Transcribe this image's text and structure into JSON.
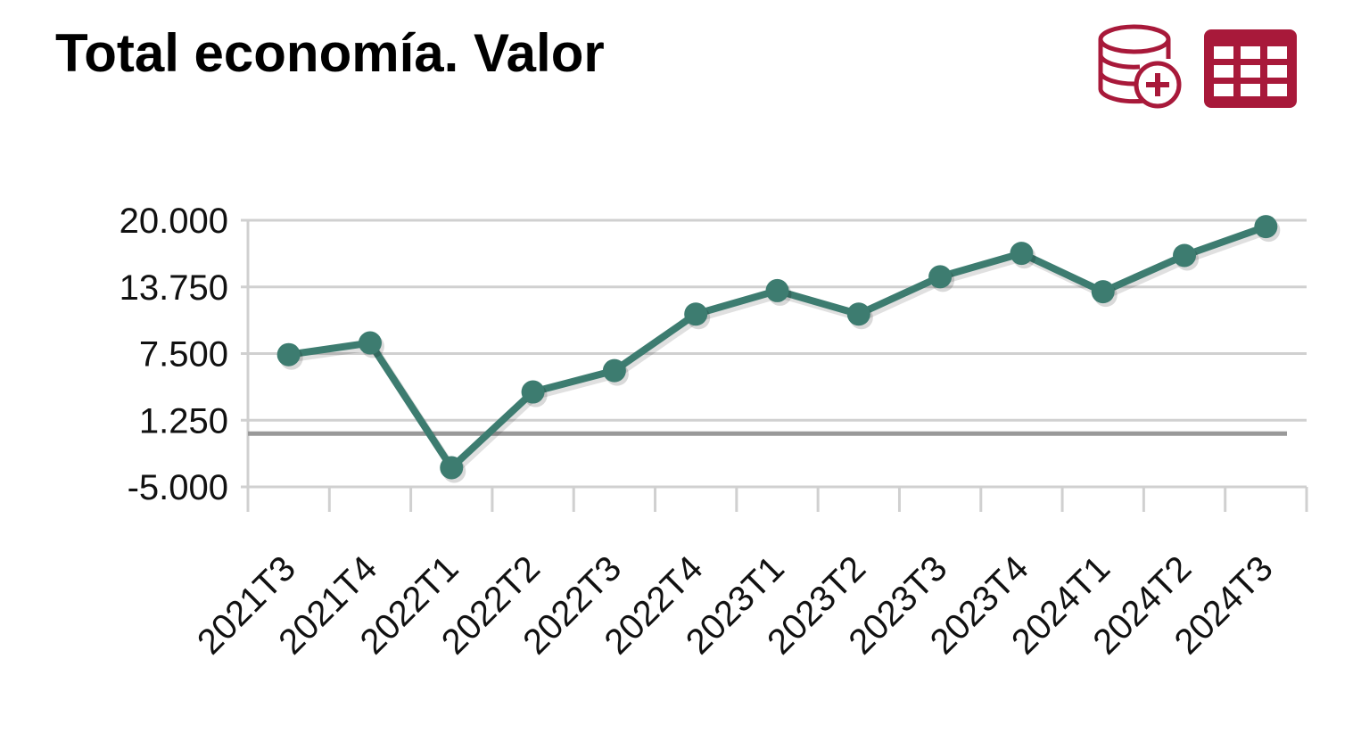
{
  "chart_data": {
    "type": "line",
    "title": "Total economía. Valor",
    "categories": [
      "2021T3",
      "2021T4",
      "2022T1",
      "2022T2",
      "2022T3",
      "2022T4",
      "2023T1",
      "2023T2",
      "2023T3",
      "2023T4",
      "2024T1",
      "2024T2",
      "2024T3"
    ],
    "series": [
      {
        "color": "#3d7c70",
        "values": [
          7400,
          8500,
          -3200,
          3900,
          5900,
          11200,
          13400,
          11200,
          14700,
          16900,
          13300,
          16700,
          19400
        ]
      }
    ],
    "ylim": [
      -5000,
      20000
    ],
    "yticks": [
      {
        "value": -5000,
        "label": "-5.000"
      },
      {
        "value": 1250,
        "label": "1.250"
      },
      {
        "value": 7500,
        "label": "7.500"
      },
      {
        "value": 13750,
        "label": "13.750"
      },
      {
        "value": 20000,
        "label": "20.000"
      }
    ],
    "grid": true
  }
}
